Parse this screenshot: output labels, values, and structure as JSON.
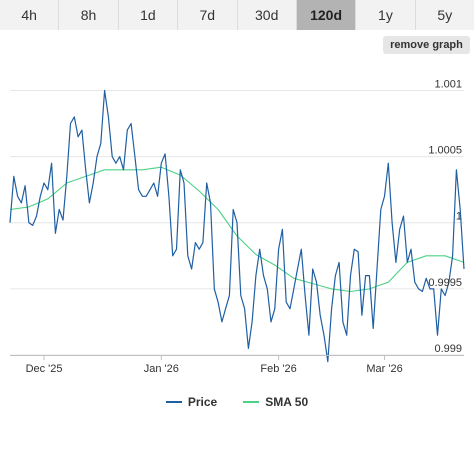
{
  "range_tabs": [
    {
      "label": "4h",
      "active": false
    },
    {
      "label": "8h",
      "active": false
    },
    {
      "label": "1d",
      "active": false
    },
    {
      "label": "7d",
      "active": false
    },
    {
      "label": "30d",
      "active": false
    },
    {
      "label": "120d",
      "active": true
    },
    {
      "label": "1y",
      "active": false
    },
    {
      "label": "5y",
      "active": false
    }
  ],
  "remove_graph_label": "remove graph",
  "colors": {
    "price": "#1f5fa3",
    "sma": "#4cd185",
    "grid": "#e6e6e6",
    "axis": "#c0c0c0"
  },
  "chart_data": {
    "type": "line",
    "x_range": [
      "2025-11-22",
      "2026-03-22"
    ],
    "ylim": [
      0.999,
      1.0012
    ],
    "y_ticks": [
      {
        "value": 1.001,
        "label": "1.001"
      },
      {
        "value": 1.0005,
        "label": "1.0005"
      },
      {
        "value": 1.0,
        "label": "1"
      },
      {
        "value": 0.9995,
        "label": "0.9995"
      },
      {
        "value": 0.999,
        "label": "0.999"
      }
    ],
    "x_ticks": [
      {
        "date": "2025-12-01",
        "label": "Dec '25"
      },
      {
        "date": "2026-01-01",
        "label": "Jan '26"
      },
      {
        "date": "2026-02-01",
        "label": "Feb '26"
      },
      {
        "date": "2026-03-01",
        "label": "Mar '26"
      }
    ],
    "series": [
      {
        "name": "Price",
        "x": [
          "2025-11-22",
          "2025-11-23",
          "2025-11-24",
          "2025-11-25",
          "2025-11-26",
          "2025-11-27",
          "2025-11-28",
          "2025-11-29",
          "2025-11-30",
          "2025-12-01",
          "2025-12-02",
          "2025-12-03",
          "2025-12-04",
          "2025-12-05",
          "2025-12-06",
          "2025-12-07",
          "2025-12-08",
          "2025-12-09",
          "2025-12-10",
          "2025-12-11",
          "2025-12-12",
          "2025-12-13",
          "2025-12-14",
          "2025-12-15",
          "2025-12-16",
          "2025-12-17",
          "2025-12-18",
          "2025-12-19",
          "2025-12-20",
          "2025-12-21",
          "2025-12-22",
          "2025-12-23",
          "2025-12-24",
          "2025-12-25",
          "2025-12-26",
          "2025-12-27",
          "2025-12-28",
          "2025-12-29",
          "2025-12-30",
          "2025-12-31",
          "2026-01-01",
          "2026-01-02",
          "2026-01-03",
          "2026-01-04",
          "2026-01-05",
          "2026-01-06",
          "2026-01-07",
          "2026-01-08",
          "2026-01-09",
          "2026-01-10",
          "2026-01-11",
          "2026-01-12",
          "2026-01-13",
          "2026-01-14",
          "2026-01-15",
          "2026-01-16",
          "2026-01-17",
          "2026-01-18",
          "2026-01-19",
          "2026-01-20",
          "2026-01-21",
          "2026-01-22",
          "2026-01-23",
          "2026-01-24",
          "2026-01-25",
          "2026-01-26",
          "2026-01-27",
          "2026-01-28",
          "2026-01-29",
          "2026-01-30",
          "2026-01-31",
          "2026-02-01",
          "2026-02-02",
          "2026-02-03",
          "2026-02-04",
          "2026-02-05",
          "2026-02-06",
          "2026-02-07",
          "2026-02-08",
          "2026-02-09",
          "2026-02-10",
          "2026-02-11",
          "2026-02-12",
          "2026-02-13",
          "2026-02-14",
          "2026-02-15",
          "2026-02-16",
          "2026-02-17",
          "2026-02-18",
          "2026-02-19",
          "2026-02-20",
          "2026-02-21",
          "2026-02-22",
          "2026-02-23",
          "2026-02-24",
          "2026-02-25",
          "2026-02-26",
          "2026-02-27",
          "2026-02-28",
          "2026-03-01",
          "2026-03-02",
          "2026-03-03",
          "2026-03-04",
          "2026-03-05",
          "2026-03-06",
          "2026-03-07",
          "2026-03-08",
          "2026-03-09",
          "2026-03-10",
          "2026-03-11",
          "2026-03-12",
          "2026-03-13",
          "2026-03-14",
          "2026-03-15",
          "2026-03-16",
          "2026-03-17",
          "2026-03-18",
          "2026-03-19",
          "2026-03-20",
          "2026-03-21",
          "2026-03-22"
        ],
        "values": [
          1.0,
          1.00035,
          1.0002,
          1.00015,
          1.00028,
          1.0,
          0.99998,
          1.00005,
          1.0002,
          1.0003,
          1.00025,
          1.00045,
          0.99992,
          1.0001,
          1.00002,
          1.00035,
          1.00075,
          1.0008,
          1.00065,
          1.0007,
          1.0004,
          1.00015,
          1.0003,
          1.0005,
          1.0006,
          1.001,
          1.0008,
          1.0005,
          1.00045,
          1.0005,
          1.0004,
          1.0007,
          1.00075,
          1.0005,
          1.00025,
          1.0002,
          1.0002,
          1.00025,
          1.0003,
          1.0002,
          1.00045,
          1.00052,
          1.0002,
          0.99975,
          0.9998,
          1.0004,
          1.0003,
          0.99975,
          0.99965,
          0.99985,
          0.9998,
          0.99985,
          1.0003,
          1.00015,
          0.9995,
          0.9994,
          0.99925,
          0.99935,
          0.99945,
          1.0001,
          1.0,
          0.99945,
          0.99935,
          0.99905,
          0.99925,
          0.9996,
          0.9998,
          0.9996,
          0.9995,
          0.99925,
          0.99935,
          0.9998,
          0.99995,
          0.9994,
          0.99935,
          0.9995,
          0.99965,
          0.9998,
          0.99945,
          0.99915,
          0.99965,
          0.99955,
          0.9993,
          0.99915,
          0.99895,
          0.99935,
          0.9996,
          0.9997,
          0.99925,
          0.99915,
          0.9996,
          0.9998,
          0.99978,
          0.9993,
          0.9996,
          0.9996,
          0.9992,
          0.99965,
          1.0001,
          1.0002,
          1.00045,
          1.0,
          0.9997,
          0.99995,
          1.00005,
          0.9997,
          0.9998,
          0.99955,
          0.9995,
          0.99948,
          0.99958,
          0.9995,
          0.9995,
          0.99915,
          0.9995,
          0.99945,
          0.99955,
          0.99975,
          1.0004,
          1.0001,
          0.99965
        ],
        "color_key": "price"
      },
      {
        "name": "SMA 50",
        "x": [
          "2025-11-22",
          "2025-11-27",
          "2025-12-02",
          "2025-12-07",
          "2025-12-12",
          "2025-12-17",
          "2025-12-22",
          "2025-12-27",
          "2026-01-01",
          "2026-01-06",
          "2026-01-11",
          "2026-01-16",
          "2026-01-21",
          "2026-01-26",
          "2026-01-31",
          "2026-02-05",
          "2026-02-10",
          "2026-02-15",
          "2026-02-20",
          "2026-02-25",
          "2026-03-02",
          "2026-03-07",
          "2026-03-12",
          "2026-03-17",
          "2026-03-22"
        ],
        "values": [
          1.0001,
          1.00012,
          1.00018,
          1.0003,
          1.00035,
          1.0004,
          1.0004,
          1.0004,
          1.00042,
          1.00036,
          1.00024,
          1.0001,
          0.9999,
          0.99976,
          0.99968,
          0.99958,
          0.99954,
          0.9995,
          0.99948,
          0.9995,
          0.99955,
          0.9997,
          0.99975,
          0.99975,
          0.9997
        ],
        "color_key": "sma"
      }
    ],
    "legend": [
      {
        "label": "Price",
        "color_key": "price"
      },
      {
        "label": "SMA 50",
        "color_key": "sma"
      }
    ],
    "legend_position": "bottom",
    "grid": true
  }
}
